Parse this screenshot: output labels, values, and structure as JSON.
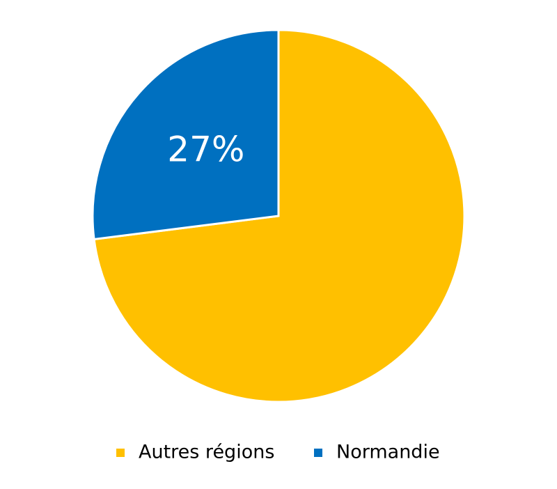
{
  "chart_data": {
    "type": "pie",
    "categories": [
      "Autres régions",
      "Normandie"
    ],
    "values": [
      73,
      27
    ],
    "value_labels": [
      null,
      "27%"
    ],
    "colors": [
      "#FFC000",
      "#0070C0"
    ],
    "legend": "bottom"
  }
}
